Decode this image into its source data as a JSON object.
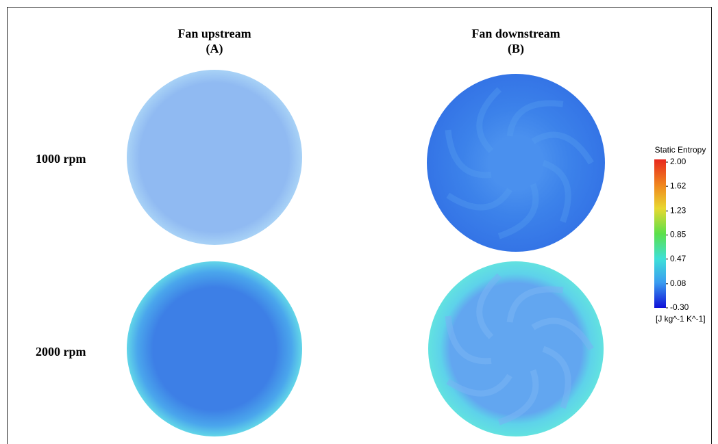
{
  "columns": [
    {
      "title": "Fan upstream",
      "label": "(A)"
    },
    {
      "title": "Fan downstream",
      "label": "(B)"
    }
  ],
  "rows": [
    {
      "label": "1000 rpm"
    },
    {
      "label": "2000 rpm"
    }
  ],
  "legend": {
    "title": "Static Entropy",
    "unit": "[J kg^-1 K^-1]",
    "ticks": [
      {
        "value": 2.0,
        "label": "2.00"
      },
      1.62,
      1.23,
      0.85,
      0.47,
      0.08,
      {
        "value": -0.3,
        "label": "-0.30"
      }
    ]
  }
}
